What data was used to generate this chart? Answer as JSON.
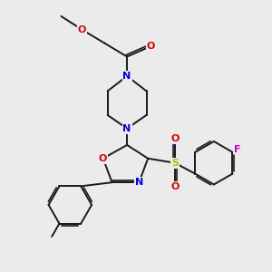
{
  "bg_color": "#ebebeb",
  "bond_color": "#1a1a1a",
  "bond_width": 1.4,
  "fig_size": [
    3.0,
    3.0
  ],
  "dpi": 100,
  "atom_colors": {
    "N": "#0000dd",
    "O": "#dd0000",
    "S": "#bbbb00",
    "F": "#cc00cc"
  },
  "font_size": 8.0,
  "xlim": [
    0.5,
    9.5
  ],
  "ylim": [
    0.8,
    9.8
  ]
}
